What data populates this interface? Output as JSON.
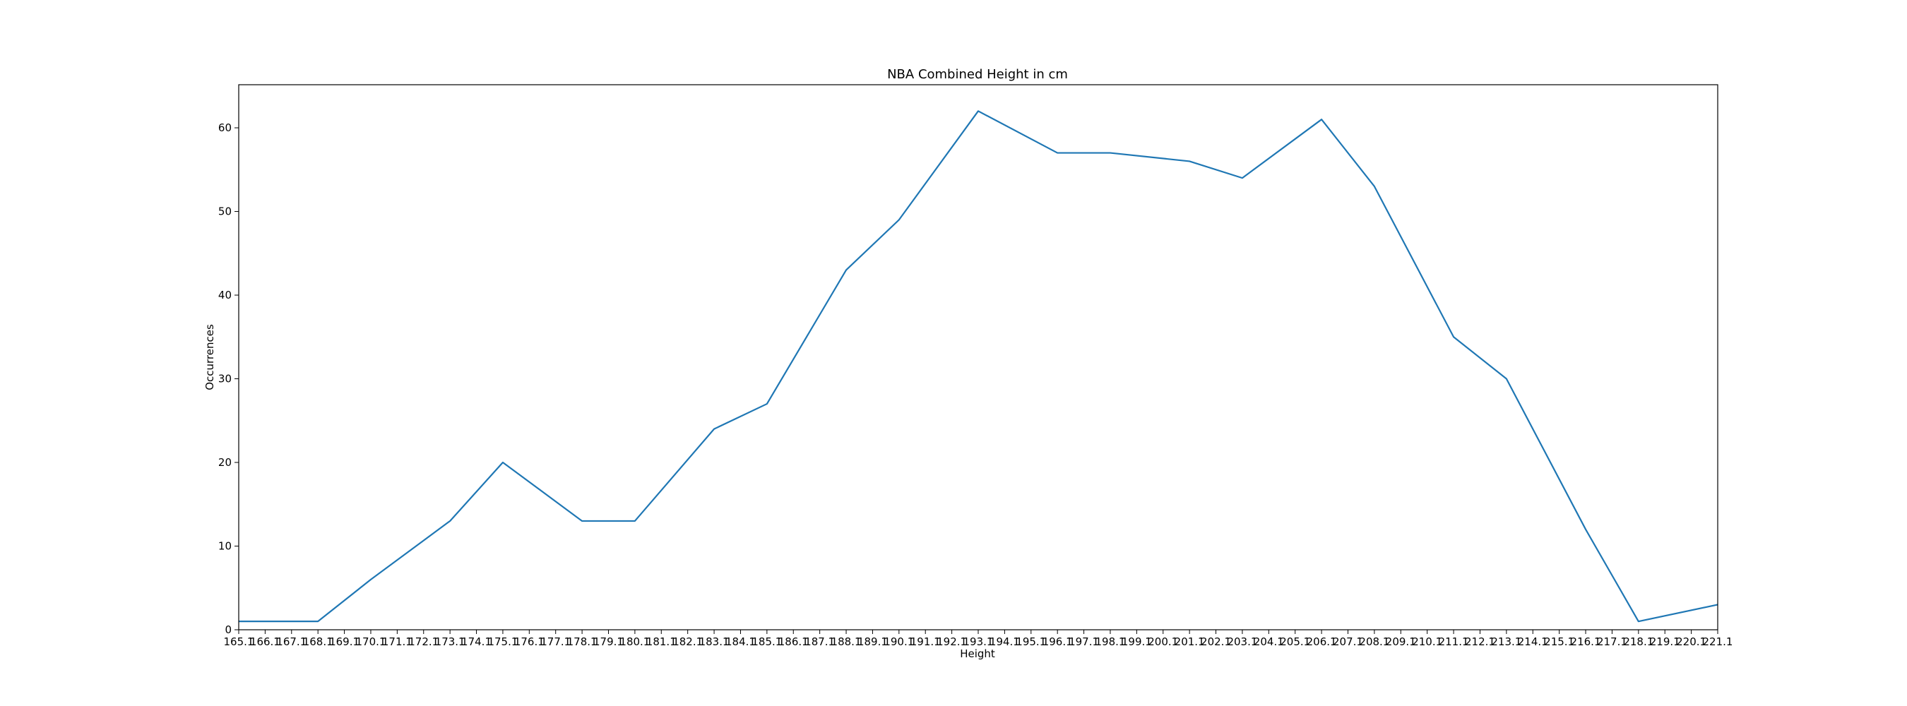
{
  "chart_data": {
    "type": "line",
    "title": "NBA Combined Height in cm",
    "xlabel": "Height",
    "ylabel": "Occurrences",
    "categories": [
      "165.1",
      "166.1",
      "167.1",
      "168.1",
      "169.1",
      "170.1",
      "171.1",
      "172.1",
      "173.1",
      "174.1",
      "175.1",
      "176.1",
      "177.1",
      "178.1",
      "179.1",
      "180.1",
      "181.1",
      "182.1",
      "183.1",
      "184.1",
      "185.1",
      "186.1",
      "187.1",
      "188.1",
      "189.1",
      "190.1",
      "191.1",
      "192.1",
      "193.1",
      "194.1",
      "195.1",
      "196.1",
      "197.1",
      "198.1",
      "199.1",
      "200.1",
      "201.1",
      "202.1",
      "203.1",
      "204.1",
      "205.1",
      "206.1",
      "207.1",
      "208.1",
      "209.1",
      "210.1",
      "211.1",
      "212.1",
      "213.1",
      "214.1",
      "215.1",
      "216.1",
      "217.1",
      "218.1",
      "219.1",
      "220.1",
      "221.1"
    ],
    "points": [
      {
        "x": 165.1,
        "y": 1
      },
      {
        "x": 168.1,
        "y": 1
      },
      {
        "x": 170.1,
        "y": 6
      },
      {
        "x": 173.1,
        "y": 13
      },
      {
        "x": 175.1,
        "y": 20
      },
      {
        "x": 178.1,
        "y": 13
      },
      {
        "x": 180.1,
        "y": 13
      },
      {
        "x": 183.1,
        "y": 24
      },
      {
        "x": 185.1,
        "y": 27
      },
      {
        "x": 188.1,
        "y": 43
      },
      {
        "x": 190.1,
        "y": 49
      },
      {
        "x": 193.1,
        "y": 62
      },
      {
        "x": 196.1,
        "y": 57
      },
      {
        "x": 198.1,
        "y": 57
      },
      {
        "x": 201.1,
        "y": 56
      },
      {
        "x": 203.1,
        "y": 54
      },
      {
        "x": 206.1,
        "y": 61
      },
      {
        "x": 208.1,
        "y": 53
      },
      {
        "x": 211.1,
        "y": 35
      },
      {
        "x": 213.1,
        "y": 30
      },
      {
        "x": 216.1,
        "y": 12
      },
      {
        "x": 218.1,
        "y": 1
      },
      {
        "x": 221.1,
        "y": 3
      }
    ],
    "yticks": [
      0,
      10,
      20,
      30,
      40,
      50,
      60
    ],
    "xlim": [
      165.1,
      221.1
    ],
    "ylim": [
      0,
      65.15
    ],
    "grid": false,
    "line_color": "#1f77b4"
  }
}
